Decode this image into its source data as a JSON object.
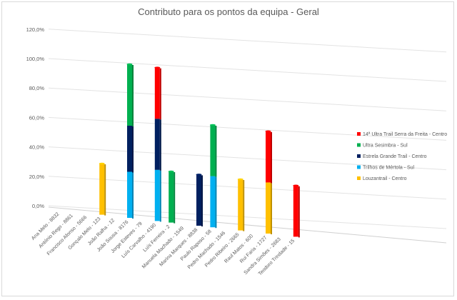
{
  "chart_data": {
    "type": "bar",
    "subtype": "3d-stacked-column",
    "title": "Contributo para os pontos da equipa - Geral",
    "xlabel": "",
    "ylabel": "",
    "ylim": [
      0,
      120
    ],
    "yticks": [
      "0,0%",
      "20,0%",
      "40,0%",
      "60,0%",
      "80,0%",
      "100,0%",
      "120,0%"
    ],
    "grid": true,
    "legend_position": "right",
    "categories": [
      "Ana Melo - 8832",
      "António Rego - 8861",
      "Francisco Afonso - 5666",
      "Gonçalo Melo - 123",
      "João Ralha - 12",
      "João Sousa - 8176",
      "Jorge Esteves - 79",
      "Luís Carvalho - 4190",
      "Luís Ferreira - 2",
      "Manuela Machado - 1549",
      "Marina Marques - 8838",
      "Paulo Raposo - 58",
      "Pedro Machado - 1546",
      "Pedro Ribeiro - 2665",
      "Raul Matos - 600",
      "Rui Faria - 1727",
      "Sandra Simões - 2683",
      "Teodoro Trindade - 15"
    ],
    "series": [
      {
        "name": "Louzantrail - Centro",
        "color": "#ffc000",
        "values": [
          0,
          0,
          0,
          33.3,
          0,
          0,
          0,
          0,
          0,
          0,
          0,
          0,
          0,
          33.3,
          0,
          33.3,
          0,
          0
        ]
      },
      {
        "name": "Trilhos de Mértola - Sul",
        "color": "#00b0f0",
        "values": [
          0,
          0,
          0,
          0,
          0,
          30,
          0,
          33.3,
          0,
          0,
          0,
          33.3,
          0,
          0,
          0,
          0,
          0,
          0
        ]
      },
      {
        "name": "Estrela Grande Trail - Centro",
        "color": "#002060",
        "values": [
          0,
          0,
          0,
          0,
          0,
          30,
          0,
          33.3,
          0,
          0,
          33.3,
          0,
          0,
          0,
          0,
          0,
          0,
          0
        ]
      },
      {
        "name": "Ultra Sesimbra - Sul",
        "color": "#00b050",
        "values": [
          0,
          0,
          0,
          0,
          0,
          40,
          0,
          0,
          33.3,
          0,
          0,
          33.3,
          0,
          0,
          0,
          0,
          0,
          0
        ]
      },
      {
        "name": "14ª Ultra Trail Serra da Freita - Centro",
        "color": "#ff0000",
        "values": [
          0,
          0,
          0,
          0,
          0,
          0,
          0,
          33.3,
          0,
          0,
          0,
          0,
          0,
          0,
          0,
          33.3,
          0,
          33.3
        ]
      }
    ],
    "legend_order": [
      4,
      3,
      2,
      1,
      0
    ]
  }
}
